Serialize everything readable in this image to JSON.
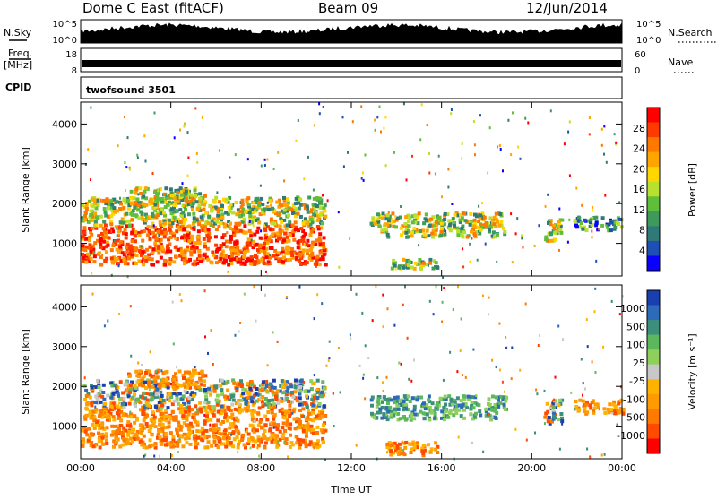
{
  "header": {
    "station": "Dome C East (fitACF)",
    "beam": "Beam 09",
    "date": "12/Jun/2014"
  },
  "noise_panel": {
    "left_label": "N.Sky",
    "right_label": "N.Search",
    "left_ticks": [
      "10^5",
      "10^0"
    ],
    "right_ticks": [
      "10^5",
      "10^0"
    ]
  },
  "freq_panel": {
    "left_label_1": "Freq.",
    "left_label_2": "[MHz]",
    "right_label": "Nave",
    "left_ticks": [
      "18",
      "8"
    ],
    "right_ticks": [
      "60",
      "0"
    ]
  },
  "cpid_panel": {
    "label": "CPID",
    "program": "twofsound 3501"
  },
  "chart_data": [
    {
      "type": "heatmap",
      "name": "power",
      "ylabel": "Slant Range [km]",
      "ylim": [
        180,
        4550
      ],
      "yticks": [
        "1000",
        "2000",
        "3000",
        "4000"
      ],
      "ytick_values": [
        1000,
        2000,
        3000,
        4000
      ],
      "colorbar_label": "Power [dB]",
      "colorbar_ticks": [
        "28",
        "24",
        "20",
        "16",
        "12",
        "8",
        "4"
      ],
      "colorbar_colors": [
        "#ff0000",
        "#ff3a00",
        "#ff7800",
        "#ffa500",
        "#ffd700",
        "#b8e02e",
        "#5fbf3a",
        "#3d9a5a",
        "#2f7a78",
        "#1f4fb5",
        "#0a00ff"
      ],
      "regions": [
        {
          "t0": 0.0,
          "t1": 10.8,
          "r0": 500,
          "r1": 1500,
          "level": "high"
        },
        {
          "t0": 0.0,
          "t1": 10.8,
          "r0": 1500,
          "r1": 2200,
          "level": "mid"
        },
        {
          "t0": 2.0,
          "t1": 5.5,
          "r0": 2000,
          "r1": 2450,
          "level": "mid"
        },
        {
          "t0": 12.8,
          "t1": 18.8,
          "r0": 1200,
          "r1": 1800,
          "level": "mid"
        },
        {
          "t0": 13.5,
          "t1": 15.8,
          "r0": 400,
          "r1": 650,
          "level": "mid"
        },
        {
          "t0": 20.5,
          "t1": 21.3,
          "r0": 1100,
          "r1": 1700,
          "level": "mid"
        },
        {
          "t0": 21.8,
          "t1": 24.0,
          "r0": 1350,
          "r1": 1700,
          "level": "low"
        }
      ]
    },
    {
      "type": "heatmap",
      "name": "velocity",
      "xlabel": "Time UT",
      "ylabel": "Slant Range [km]",
      "xlim": [
        0,
        24
      ],
      "xticks": [
        "00:00",
        "04:00",
        "08:00",
        "12:00",
        "16:00",
        "20:00",
        "00:00"
      ],
      "ylim": [
        180,
        4550
      ],
      "yticks": [
        "1000",
        "2000",
        "3000",
        "4000"
      ],
      "ytick_values": [
        1000,
        2000,
        3000,
        4000
      ],
      "colorbar_label": "Velocity [m s⁻¹]",
      "colorbar_ticks": [
        "1000",
        "500",
        "100",
        "25",
        "-25",
        "-100",
        "-500",
        "-1000"
      ],
      "colorbar_colors": [
        "#1a3fb0",
        "#2d6bb8",
        "#3c8f7a",
        "#5cb85c",
        "#8ed05a",
        "#c8c8c8",
        "#ffb300",
        "#ff9a00",
        "#ff7a00",
        "#ff4a00",
        "#ff0000"
      ],
      "regions": [
        {
          "t0": 0.0,
          "t1": 10.8,
          "r0": 500,
          "r1": 1500,
          "level": "neg"
        },
        {
          "t0": 0.0,
          "t1": 10.8,
          "r0": 1500,
          "r1": 2200,
          "level": "mixed"
        },
        {
          "t0": 2.0,
          "t1": 5.5,
          "r0": 2000,
          "r1": 2450,
          "level": "neg"
        },
        {
          "t0": 12.8,
          "t1": 18.8,
          "r0": 1200,
          "r1": 1800,
          "level": "pos"
        },
        {
          "t0": 13.5,
          "t1": 15.8,
          "r0": 300,
          "r1": 650,
          "level": "neg"
        },
        {
          "t0": 20.5,
          "t1": 21.3,
          "r0": 1100,
          "r1": 1700,
          "level": "mixed"
        },
        {
          "t0": 21.8,
          "t1": 24.0,
          "r0": 1350,
          "r1": 1700,
          "level": "neg"
        }
      ]
    }
  ]
}
